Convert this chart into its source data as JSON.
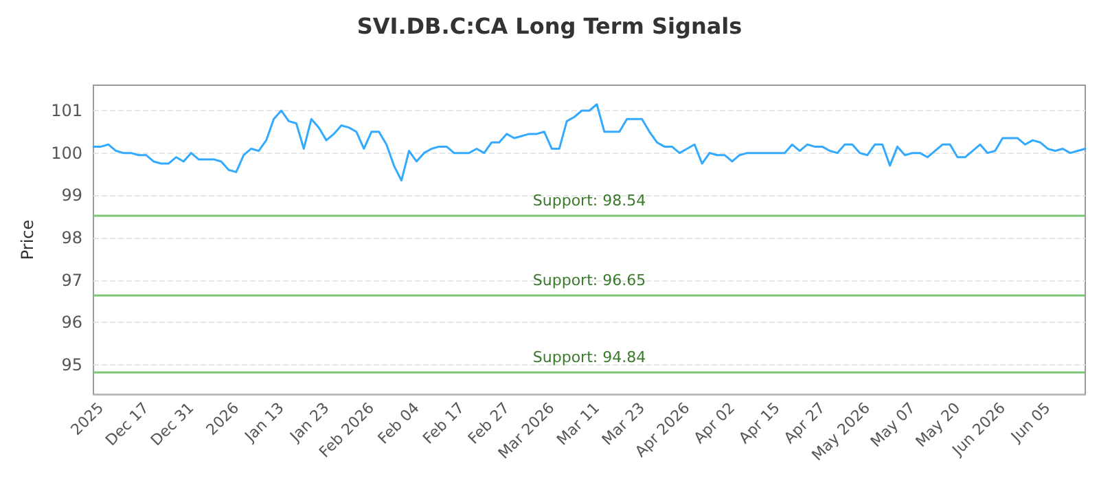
{
  "chart_data": {
    "type": "line",
    "title": "SVI.DB.C:CA Long Term Signals",
    "ylabel": "Price",
    "categories": [
      null,
      "2025",
      null,
      null,
      null,
      null,
      null,
      "Dec 17",
      null,
      null,
      null,
      null,
      null,
      "Dec 31",
      null,
      null,
      null,
      null,
      null,
      "2026",
      null,
      null,
      null,
      null,
      null,
      "Jan 13",
      null,
      null,
      null,
      null,
      null,
      "Jan 23",
      null,
      null,
      null,
      null,
      null,
      "Feb 2026",
      null,
      null,
      null,
      null,
      null,
      "Feb 04",
      null,
      null,
      null,
      null,
      null,
      "Feb 17",
      null,
      null,
      null,
      null,
      null,
      "Feb 27",
      null,
      null,
      null,
      null,
      null,
      "Mar 2026",
      null,
      null,
      null,
      null,
      null,
      "Mar 11",
      null,
      null,
      null,
      null,
      null,
      "Mar 23",
      null,
      null,
      null,
      null,
      null,
      "Apr 2026",
      null,
      null,
      null,
      null,
      null,
      "Apr 02",
      null,
      null,
      null,
      null,
      null,
      "Apr 15",
      null,
      null,
      null,
      null,
      null,
      "Apr 27",
      null,
      null,
      null,
      null,
      null,
      "May 2026",
      null,
      null,
      null,
      null,
      null,
      "May 07",
      null,
      null,
      null,
      null,
      null,
      "May 20",
      null,
      null,
      null,
      null,
      null,
      "Jun 2026",
      null,
      null,
      null,
      null,
      null,
      "Jun 05",
      null,
      null,
      null,
      null,
      null
    ],
    "series": [
      {
        "color": "#33aaff",
        "values": [
          100.15,
          100.15,
          100.2,
          100.05,
          100.0,
          100.0,
          99.95,
          99.95,
          99.8,
          99.75,
          99.75,
          99.9,
          99.8,
          100.0,
          99.85,
          99.85,
          99.85,
          99.8,
          99.6,
          99.55,
          99.95,
          100.1,
          100.05,
          100.3,
          100.8,
          101.0,
          100.75,
          100.7,
          100.1,
          100.8,
          100.6,
          100.3,
          100.45,
          100.65,
          100.6,
          100.5,
          100.1,
          100.5,
          100.5,
          100.2,
          99.7,
          99.35,
          100.05,
          99.8,
          100.0,
          100.1,
          100.15,
          100.15,
          100.0,
          100.0,
          100.0,
          100.1,
          100.0,
          100.25,
          100.25,
          100.45,
          100.35,
          100.4,
          100.45,
          100.45,
          100.5,
          100.1,
          100.1,
          100.75,
          100.85,
          101.0,
          101.0,
          101.15,
          100.5,
          100.5,
          100.5,
          100.8,
          100.8,
          100.8,
          100.5,
          100.25,
          100.15,
          100.15,
          100.0,
          100.1,
          100.2,
          99.75,
          100.0,
          99.95,
          99.95,
          99.8,
          99.95,
          100.0,
          100.0,
          100.0,
          100.0,
          100.0,
          100.0,
          100.2,
          100.05,
          100.2,
          100.15,
          100.15,
          100.05,
          100.0,
          100.2,
          100.2,
          100.0,
          99.95,
          100.2,
          100.2,
          99.7,
          100.15,
          99.95,
          100.0,
          100.0,
          99.9,
          100.05,
          100.2,
          100.2,
          99.9,
          99.9,
          100.05,
          100.2,
          100.0,
          100.05,
          100.35,
          100.35,
          100.35,
          100.2,
          100.3,
          100.25,
          100.1,
          100.05,
          100.1,
          100.0,
          100.05,
          100.1
        ]
      }
    ],
    "ylim": [
      94.3,
      101.6
    ],
    "yticks": [
      95,
      96,
      97,
      98,
      99,
      100,
      101
    ],
    "grid": "y",
    "marker": "none",
    "line_style": "solid",
    "ref_lines": [
      {
        "axis": "y",
        "value": 98.54,
        "label": "Support: 98.54",
        "color": "#7cc576"
      },
      {
        "axis": "y",
        "value": 96.65,
        "label": "Support: 96.65",
        "color": "#7cc576"
      },
      {
        "axis": "y",
        "value": 94.84,
        "label": "Support: 94.84",
        "color": "#7cc576"
      }
    ]
  }
}
